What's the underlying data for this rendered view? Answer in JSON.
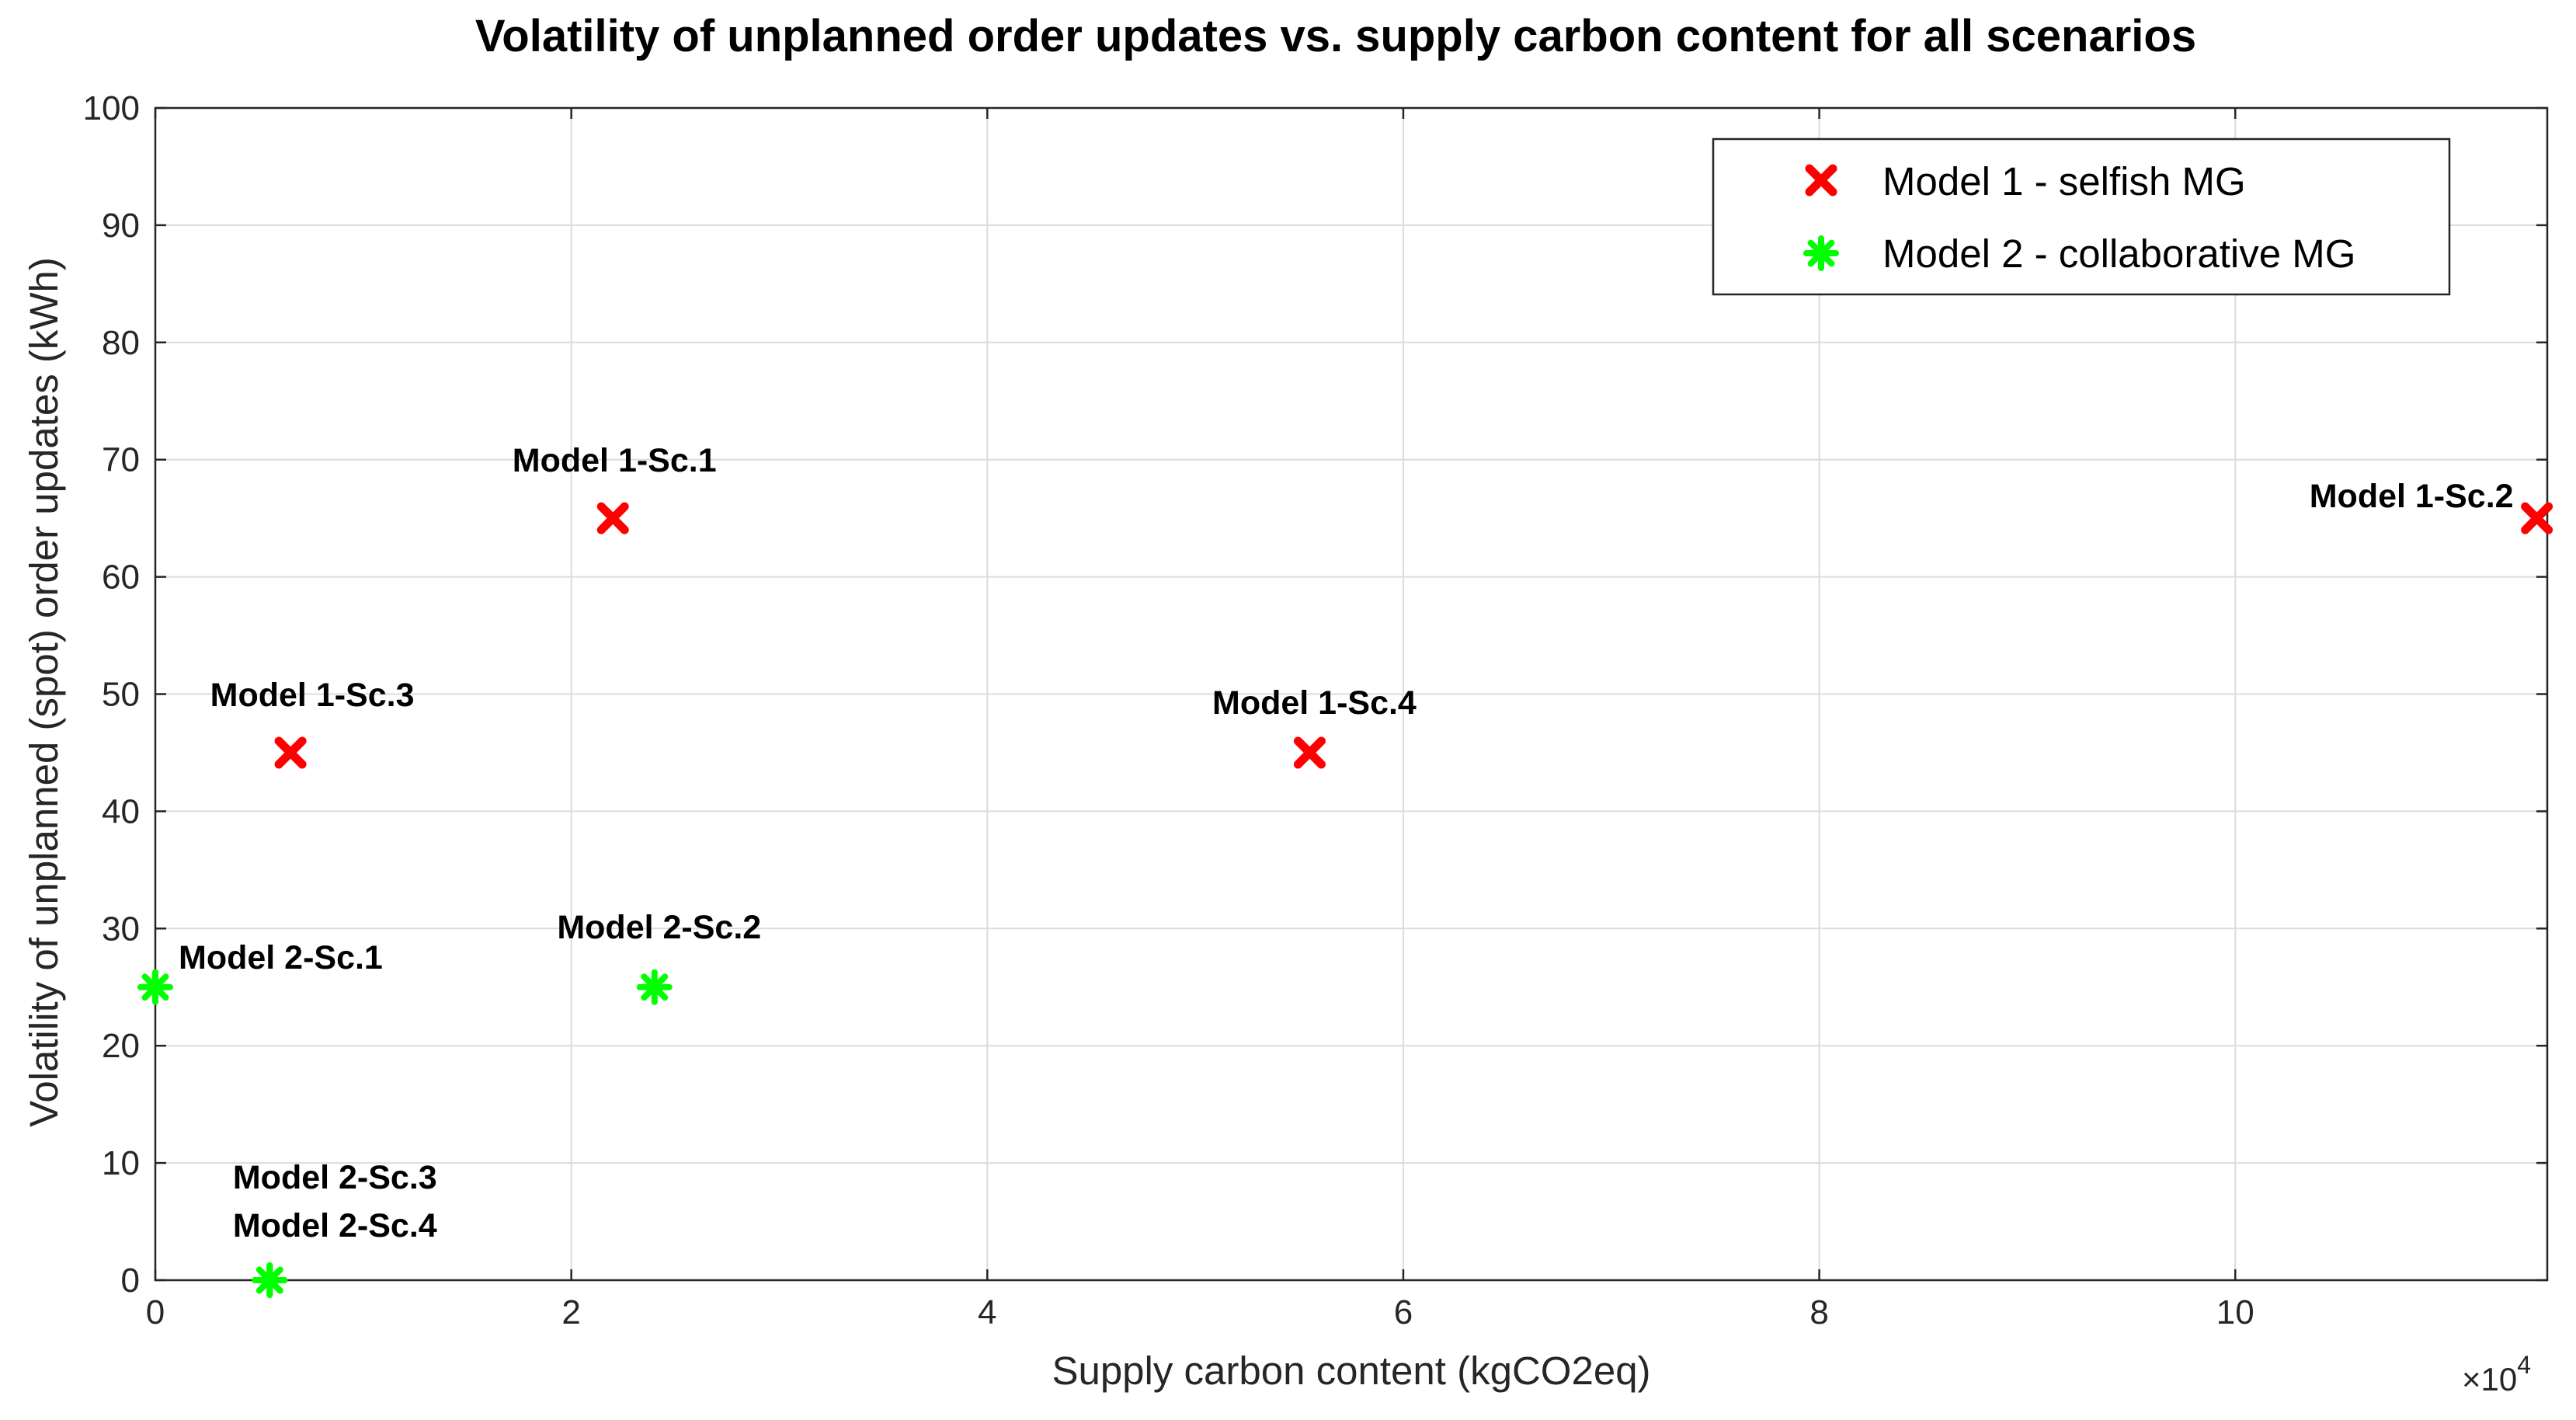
{
  "chart_data": {
    "type": "scatter",
    "title": "Volatility of unplanned order updates vs. supply carbon content for all scenarios",
    "xlabel": "Supply carbon content (kgCO2eq)",
    "ylabel": "Volatility of unplanned (spot) order updates (kWh)",
    "x_exponent_base": "×10",
    "x_exponent_power": "4",
    "xlim": [
      0,
      11.5
    ],
    "ylim": [
      0,
      100
    ],
    "x_ticks": [
      0,
      2,
      4,
      6,
      8,
      10
    ],
    "x_tick_labels": [
      "0",
      "2",
      "4",
      "6",
      "8",
      "10"
    ],
    "y_ticks": [
      0,
      10,
      20,
      30,
      40,
      50,
      60,
      70,
      80,
      90,
      100
    ],
    "y_tick_labels": [
      "0",
      "10",
      "20",
      "30",
      "40",
      "50",
      "60",
      "70",
      "80",
      "90",
      "100"
    ],
    "grid": true,
    "legend_position": "top-right",
    "series": [
      {
        "name": "Model 1 - selfish MG",
        "color": "#ff0000",
        "marker": "x",
        "points": [
          {
            "x": 2.2,
            "y": 65,
            "label": "Model 1-Sc.1"
          },
          {
            "x": 11.45,
            "y": 65,
            "label": "Model 1-Sc.2"
          },
          {
            "x": 0.65,
            "y": 45,
            "label": "Model 1-Sc.3"
          },
          {
            "x": 5.55,
            "y": 45,
            "label": "Model 1-Sc.4"
          }
        ]
      },
      {
        "name": "Model 2 - collaborative MG",
        "color": "#00ff00",
        "marker": "asterisk",
        "points": [
          {
            "x": 0.0,
            "y": 25,
            "label": "Model 2-Sc.1"
          },
          {
            "x": 2.4,
            "y": 25,
            "label": "Model 2-Sc.2"
          },
          {
            "x": 0.55,
            "y": 0,
            "label": "Model 2-Sc.3"
          },
          {
            "x": 0.55,
            "y": 0,
            "label": "Model 2-Sc.4"
          }
        ]
      }
    ]
  }
}
